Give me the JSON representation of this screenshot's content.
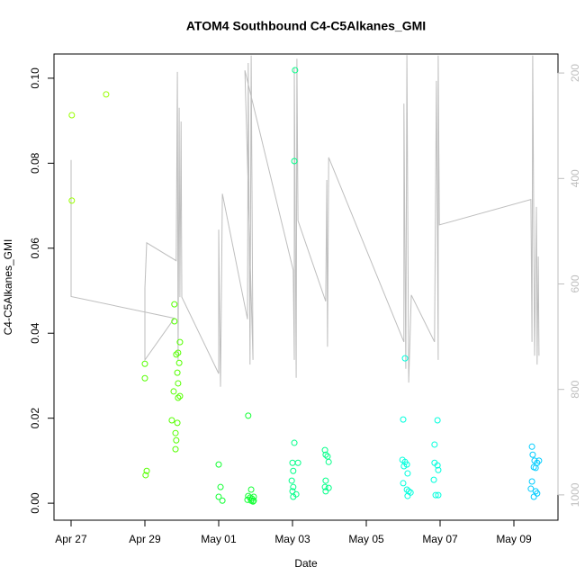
{
  "chart_data": {
    "type": "scatter",
    "title": "ATOM4 Southbound C4-C5Alkanes_GMI",
    "x_label": "Date",
    "y_label": "C4-C5Alkanes_GMI",
    "xlim": [
      -0.463,
      13.195
    ],
    "xticks": [
      {
        "value": 0,
        "label": "Apr 27"
      },
      {
        "value": 2,
        "label": "Apr 29"
      },
      {
        "value": 4,
        "label": "May 01"
      },
      {
        "value": 6,
        "label": "May 03"
      },
      {
        "value": 8,
        "label": "May 05"
      },
      {
        "value": 10,
        "label": "May 07"
      },
      {
        "value": 12,
        "label": "May 09"
      }
    ],
    "ylim": [
      -0.004,
      0.1057
    ],
    "yticks": [
      {
        "value": 0,
        "label": "0.00"
      },
      {
        "value": 0.02,
        "label": "0.02"
      },
      {
        "value": 0.04,
        "label": "0.04"
      },
      {
        "value": 0.06,
        "label": "0.06"
      },
      {
        "value": 0.08,
        "label": "0.08"
      },
      {
        "value": 0.1,
        "label": "0.10"
      }
    ],
    "y2lim": [
      1048,
      164
    ],
    "y2ticks": [
      200,
      400,
      600,
      800,
      1000
    ],
    "y2_color": "#bebebe",
    "series": [
      {
        "color": "#99ff00",
        "x": [
          0.02,
          0.02,
          0.95
        ],
        "values": [
          0.0913,
          0.0712,
          0.0962
        ]
      },
      {
        "color": "#55ff00",
        "x": [
          2.0,
          2.0,
          2.05,
          2.02,
          2.8,
          2.8,
          2.95,
          2.9,
          2.85,
          2.93,
          2.88,
          2.9,
          2.78,
          2.95,
          2.9,
          2.73,
          2.88,
          2.83,
          2.85,
          2.83
        ],
        "values": [
          0.0328,
          0.0294,
          0.0076,
          0.0066,
          0.0468,
          0.0428,
          0.0379,
          0.0354,
          0.035,
          0.033,
          0.0307,
          0.0282,
          0.0263,
          0.0252,
          0.0248,
          0.0195,
          0.0189,
          0.0165,
          0.0148,
          0.0127
        ]
      },
      {
        "color": "#11ff33",
        "x": [
          4.0,
          4.05,
          4.0,
          4.1,
          4.8,
          4.88,
          4.8,
          4.85,
          4.9,
          4.95,
          4.88,
          4.93,
          4.78,
          4.95
        ],
        "values": [
          0.0091,
          0.0038,
          0.0015,
          0.0006,
          0.0206,
          0.0032,
          0.0017,
          0.0013,
          0.0011,
          0.0015,
          0.0006,
          0.0004,
          0.0008,
          0.0006
        ]
      },
      {
        "color": "#00ff88",
        "x": [
          6.07,
          6.05,
          6.05,
          6.0,
          6.15,
          6.02,
          5.98,
          6.02,
          6.0,
          6.1,
          6.02,
          6.88,
          6.9,
          6.95,
          6.98,
          6.9,
          6.88,
          6.98,
          6.9
        ],
        "values": [
          0.1019,
          0.0805,
          0.0142,
          0.0095,
          0.0095,
          0.0076,
          0.0053,
          0.0038,
          0.0028,
          0.0021,
          0.0015,
          0.0125,
          0.0114,
          0.011,
          0.0097,
          0.0053,
          0.0038,
          0.0036,
          0.0028
        ]
      },
      {
        "color": "#00ffdd",
        "x": [
          9.05,
          9.0,
          8.98,
          9.05,
          9.1,
          9.02,
          9.12,
          9.0,
          9.1,
          9.15,
          9.2,
          9.12,
          9.93,
          9.85,
          9.85,
          9.93,
          9.95,
          9.83,
          9.88,
          9.95
        ],
        "values": [
          0.0341,
          0.0197,
          0.0102,
          0.0097,
          0.0091,
          0.0087,
          0.007,
          0.0047,
          0.0032,
          0.0028,
          0.0025,
          0.0017,
          0.0195,
          0.0138,
          0.0095,
          0.0089,
          0.0078,
          0.0055,
          0.0019,
          0.0019
        ]
      },
      {
        "color": "#00ccff",
        "x": [
          12.49,
          12.51,
          12.56,
          12.63,
          12.68,
          12.54,
          12.59,
          12.49,
          12.46,
          12.63,
          12.54,
          12.59
        ],
        "values": [
          0.0133,
          0.0114,
          0.01,
          0.0095,
          0.01,
          0.0085,
          0.0083,
          0.0051,
          0.0034,
          0.0023,
          0.0015,
          0.0028
        ]
      },
      {
        "type": "line",
        "axis": "y2",
        "color": "#bebebe",
        "x": [
          0,
          0,
          2.8,
          2.0,
          2.0,
          2.05,
          2.85,
          2.88,
          2.9,
          2.93,
          2.95,
          2.98,
          3.0,
          4.0,
          4.0,
          4.05,
          4.1,
          4.78,
          4.8,
          4.85,
          4.88,
          4.93,
          4.71,
          6.02,
          6.05,
          6.05,
          6.1,
          6.12,
          6.15,
          6.9,
          6.93,
          6.95,
          6.98,
          9.02,
          9.02,
          9.07,
          9.1,
          9.15,
          9.22,
          9.85,
          9.9,
          9.95,
          9.95,
          9.98,
          12.46,
          12.49,
          12.51,
          12.56,
          12.61,
          12.63,
          12.66,
          12.68
        ],
        "values": [
          365,
          624,
          665,
          744,
          608,
          522,
          556,
          198,
          744,
          266,
          625,
          292,
          625,
          770,
          497,
          795,
          429,
          667,
          181,
          753,
          167,
          744,
          195,
          574,
          744,
          190,
          778,
          173,
          480,
          633,
          403,
          719,
          360,
          710,
          258,
          761,
          166,
          787,
          621,
          710,
          215,
          744,
          167,
          488,
          440,
          710,
          167,
          736,
          454,
          753,
          548,
          736
        ]
      }
    ]
  }
}
